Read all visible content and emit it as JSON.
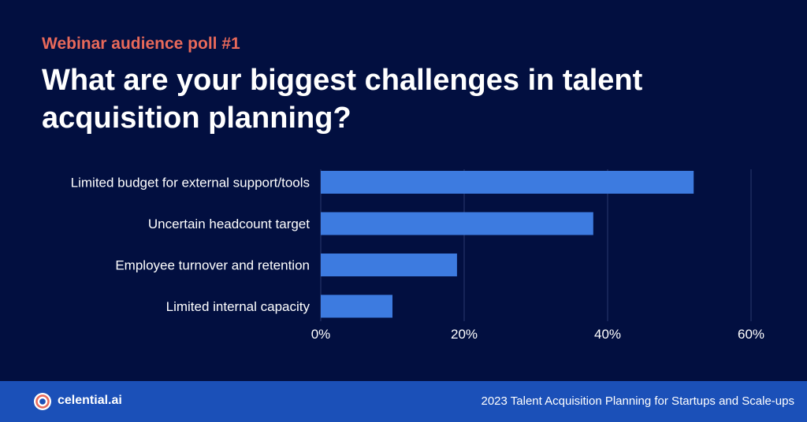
{
  "header": {
    "eyebrow": "Webinar audience poll #1",
    "title": "What are your biggest challenges in talent acquisition planning?"
  },
  "chart_data": {
    "type": "bar",
    "orientation": "horizontal",
    "title": "",
    "xlabel": "",
    "ylabel": "",
    "categories": [
      "Limited budget for external support/tools",
      "Uncertain headcount target",
      "Employee turnover and retention",
      "Limited internal capacity"
    ],
    "values": [
      52,
      38,
      19,
      10
    ],
    "xlim": [
      0,
      60
    ],
    "xticks": [
      "0%",
      "20%",
      "40%",
      "60%"
    ],
    "grid": true,
    "bar_color": "#3d7be0",
    "grid_color": "#2b3a6e"
  },
  "footer": {
    "brand": "celential.ai",
    "caption": "2023 Talent Acquisition Planning for Startups and Scale-ups"
  },
  "colors": {
    "background": "#020f40",
    "accent": "#e8695a",
    "footer_bg": "#1b50b8"
  },
  "icons": {
    "logo": "celential-logo-icon"
  }
}
